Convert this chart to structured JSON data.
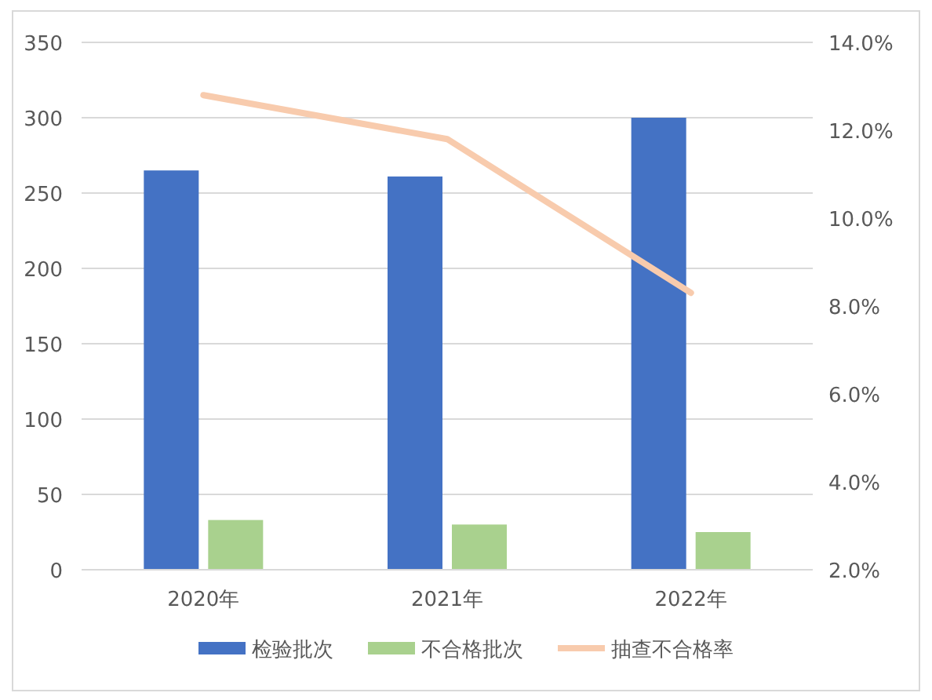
{
  "chart_data": {
    "type": "bar",
    "categories": [
      "2020年",
      "2021年",
      "2022年"
    ],
    "series": [
      {
        "name": "检验批次",
        "color": "#4472c4",
        "values": [
          265,
          261,
          300
        ]
      },
      {
        "name": "不合格批次",
        "color": "#a9d18e",
        "values": [
          33,
          30,
          25
        ]
      },
      {
        "name": "抽查不合格率",
        "type": "line",
        "axis": "y2",
        "color": "#f8cbad",
        "values": [
          12.8,
          11.8,
          8.3
        ]
      }
    ],
    "ylim": [
      0,
      350
    ],
    "yticks": [
      0,
      50,
      100,
      150,
      200,
      250,
      300,
      350
    ],
    "y2lim": [
      2,
      14
    ],
    "y2ticks": [
      {
        "value": 2,
        "label": "2.0%"
      },
      {
        "value": 4,
        "label": "4.0%"
      },
      {
        "value": 6,
        "label": "6.0%"
      },
      {
        "value": 8,
        "label": "8.0%"
      },
      {
        "value": 10,
        "label": "10.0%"
      },
      {
        "value": 12,
        "label": "12.0%"
      },
      {
        "value": 14,
        "label": "14.0%"
      }
    ],
    "grid": "y",
    "legend": "bottom"
  }
}
